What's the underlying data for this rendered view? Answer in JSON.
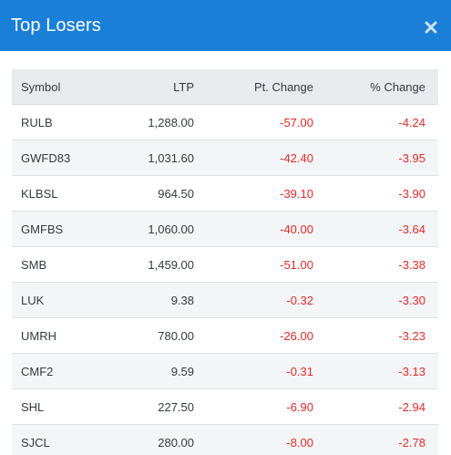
{
  "header": {
    "title": "Top Losers",
    "close_icon": "close-icon"
  },
  "table": {
    "columns": [
      "Symbol",
      "LTP",
      "Pt. Change",
      "% Change"
    ],
    "rows": [
      {
        "symbol": "RULB",
        "ltp": "1,288.00",
        "pt_change": "-57.00",
        "pct_change": "-4.24"
      },
      {
        "symbol": "GWFD83",
        "ltp": "1,031.60",
        "pt_change": "-42.40",
        "pct_change": "-3.95"
      },
      {
        "symbol": "KLBSL",
        "ltp": "964.50",
        "pt_change": "-39.10",
        "pct_change": "-3.90"
      },
      {
        "symbol": "GMFBS",
        "ltp": "1,060.00",
        "pt_change": "-40.00",
        "pct_change": "-3.64"
      },
      {
        "symbol": "SMB",
        "ltp": "1,459.00",
        "pt_change": "-51.00",
        "pct_change": "-3.38"
      },
      {
        "symbol": "LUK",
        "ltp": "9.38",
        "pt_change": "-0.32",
        "pct_change": "-3.30"
      },
      {
        "symbol": "UMRH",
        "ltp": "780.00",
        "pt_change": "-26.00",
        "pct_change": "-3.23"
      },
      {
        "symbol": "CMF2",
        "ltp": "9.59",
        "pt_change": "-0.31",
        "pct_change": "-3.13"
      },
      {
        "symbol": "SHL",
        "ltp": "227.50",
        "pt_change": "-6.90",
        "pct_change": "-2.94"
      },
      {
        "symbol": "SJCL",
        "ltp": "280.00",
        "pt_change": "-8.00",
        "pct_change": "-2.78"
      }
    ]
  },
  "colors": {
    "header_bg": "#1a7fd6",
    "negative": "#e02a2a"
  }
}
